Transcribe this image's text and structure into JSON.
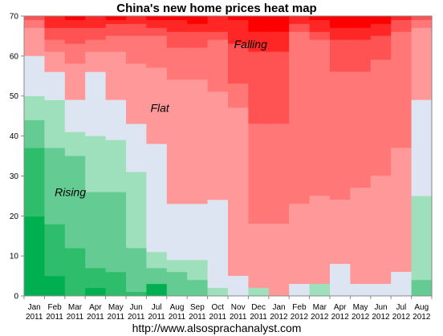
{
  "chart_data": {
    "type": "heatmap",
    "title": "China's new home prices heat map",
    "xlabel": "",
    "ylabel": "",
    "ylim": [
      0,
      70
    ],
    "yticks": [
      0,
      10,
      20,
      30,
      40,
      50,
      60,
      70
    ],
    "grid": false,
    "legend": "none",
    "categories": [
      [
        "Jan",
        "2011"
      ],
      [
        "Feb",
        "2011"
      ],
      [
        "Mar",
        "2011"
      ],
      [
        "Apr",
        "2011"
      ],
      [
        "May",
        "2011"
      ],
      [
        "Jun",
        "2011"
      ],
      [
        "Jul",
        "2011"
      ],
      [
        "Aug",
        "2011"
      ],
      [
        "Sep",
        "2011"
      ],
      [
        "Oct",
        "2011"
      ],
      [
        "Nov",
        "2011"
      ],
      [
        "Dec",
        "2011"
      ],
      [
        "Jan",
        "2012"
      ],
      [
        "Feb",
        "2012"
      ],
      [
        "Mar",
        "2012"
      ],
      [
        "Apr",
        "2012"
      ],
      [
        "May",
        "2012"
      ],
      [
        "Jun",
        "2012"
      ],
      [
        "Jul",
        "2012"
      ],
      [
        "Aug",
        "2012"
      ]
    ],
    "band_colors": [
      "#00b050",
      "#2ebd6a",
      "#64cc93",
      "#9ee0bc",
      "#dde5f2",
      "#ff9999",
      "#ff7777",
      "#ff5252",
      "#ff2626",
      "#ff0000"
    ],
    "band_boundaries": [
      [
        20,
        37,
        44,
        50,
        60,
        67,
        69,
        70,
        70
      ],
      [
        5,
        18,
        37,
        49,
        56,
        61,
        64,
        67,
        70
      ],
      [
        0,
        12,
        35,
        41,
        49,
        58,
        63,
        67,
        69
      ],
      [
        2,
        7,
        26,
        40,
        56,
        61,
        64,
        67,
        70
      ],
      [
        0,
        6,
        26,
        39,
        49,
        61,
        65,
        68,
        69
      ],
      [
        0,
        1,
        12,
        31,
        43,
        58,
        65,
        68,
        70
      ],
      [
        3,
        3,
        7,
        11,
        38,
        57,
        65,
        67,
        69
      ],
      [
        0,
        0,
        6,
        9,
        23,
        54,
        62,
        66,
        69
      ],
      [
        0,
        0,
        4,
        9,
        23,
        54,
        62,
        66,
        68
      ],
      [
        0,
        0,
        0,
        2,
        24,
        51,
        64,
        66,
        70
      ],
      [
        0,
        0,
        0,
        0,
        5,
        47,
        53,
        63,
        69
      ],
      [
        0,
        0,
        0,
        2,
        2,
        18,
        43,
        61,
        66
      ],
      [
        0,
        0,
        0,
        0,
        0,
        18,
        43,
        61,
        66
      ],
      [
        0,
        0,
        0,
        0,
        3,
        23,
        66,
        68,
        70
      ],
      [
        0,
        0,
        0,
        3,
        3,
        25,
        64,
        66,
        69
      ],
      [
        0,
        0,
        0,
        0,
        8,
        24,
        56,
        64,
        67
      ],
      [
        0,
        0,
        0,
        0,
        3,
        27,
        56,
        64,
        67
      ],
      [
        0,
        0,
        0,
        0,
        3,
        30,
        59,
        65,
        68
      ],
      [
        0,
        0,
        0,
        0,
        6,
        37,
        66,
        69,
        70
      ],
      [
        0,
        0,
        4,
        25,
        49,
        67,
        69,
        70,
        70
      ]
    ],
    "annotations": [
      {
        "text": "Falling",
        "x": 10.3,
        "y": 62
      },
      {
        "text": "Flat",
        "x": 6.2,
        "y": 46
      },
      {
        "text": "Rising",
        "x": 1.5,
        "y": 25
      }
    ]
  },
  "footer": {
    "source": "http://www.alsosprachanalyst.com"
  }
}
